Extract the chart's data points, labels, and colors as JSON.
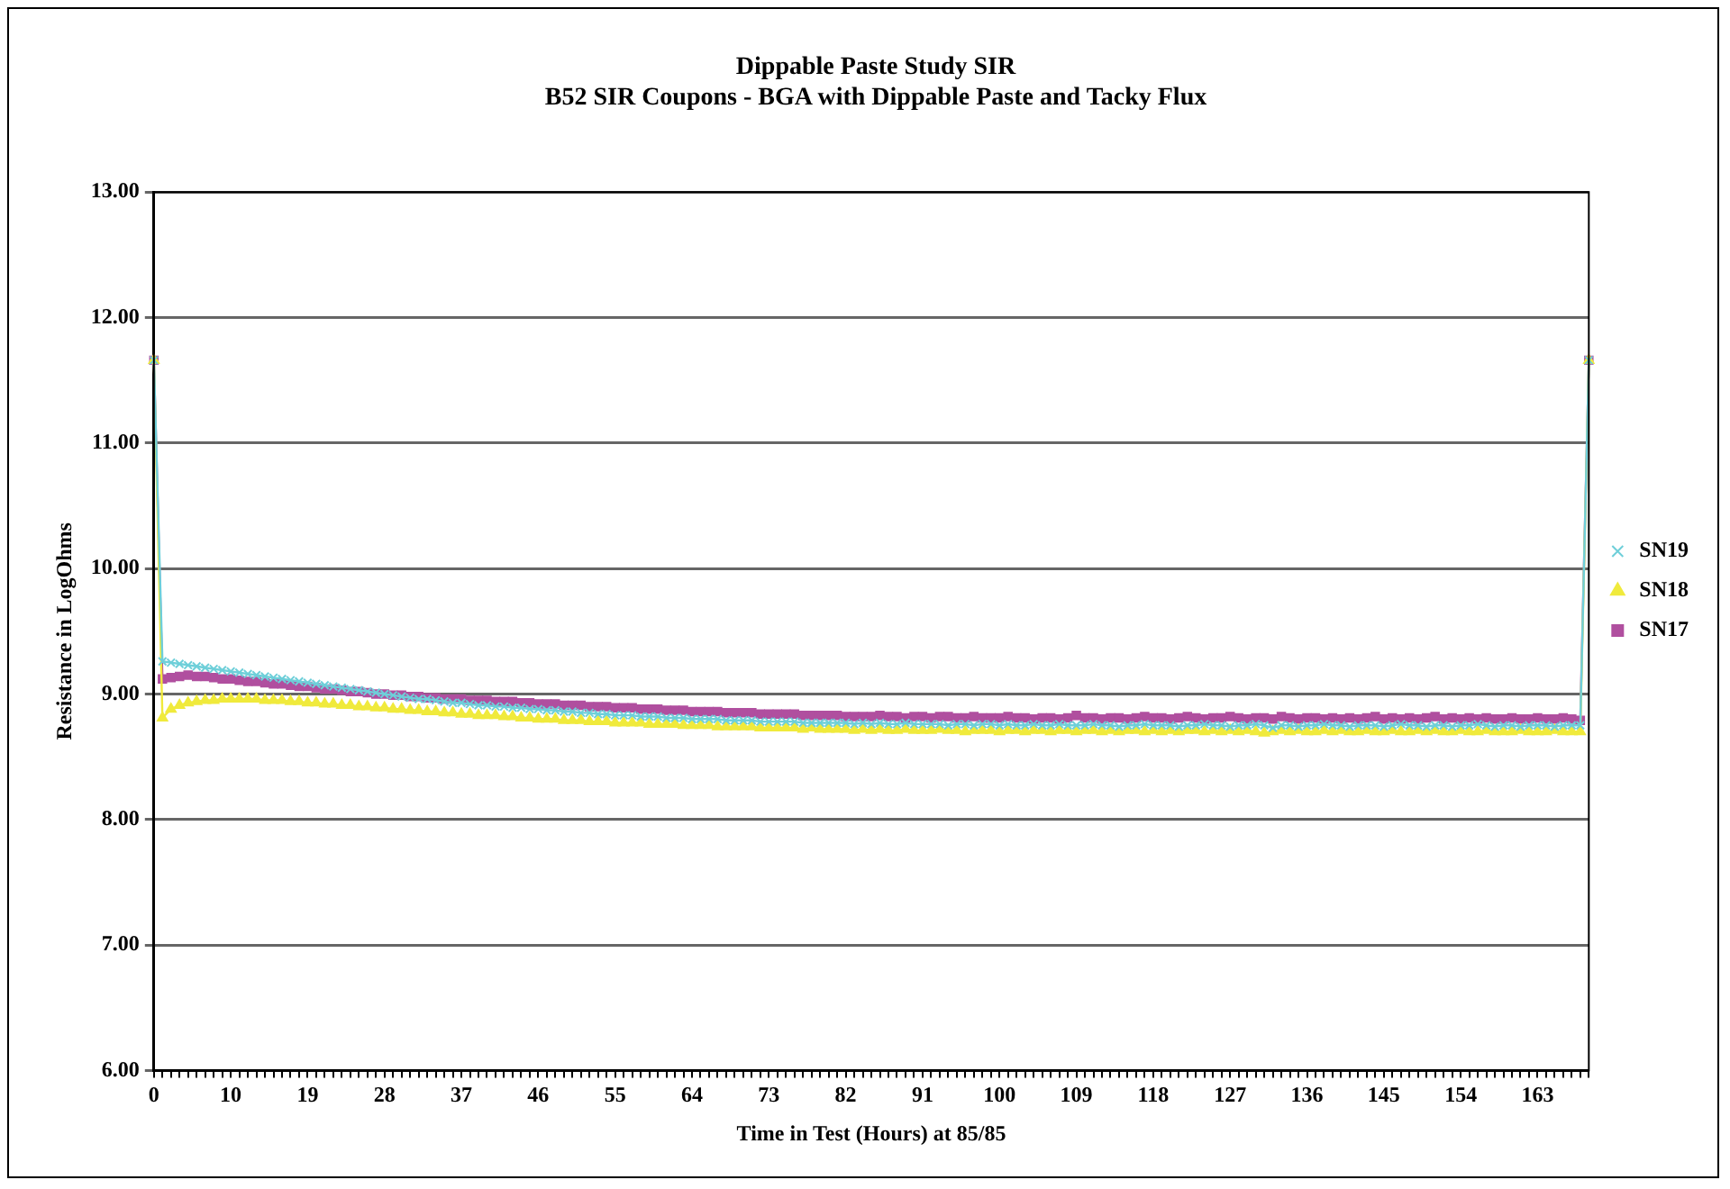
{
  "chart_data": {
    "type": "line",
    "title": "Dippable Paste Study SIR",
    "subtitle": "B52 SIR Coupons - BGA with Dippable Paste and Tacky Flux",
    "xlabel": "Time in Test (Hours) at 85/85",
    "ylabel": "Resistance in LogOhms",
    "categories": [
      "0",
      null,
      null,
      null,
      null,
      null,
      null,
      null,
      null,
      "10",
      null,
      null,
      null,
      null,
      null,
      null,
      null,
      null,
      "19",
      null,
      null,
      null,
      null,
      null,
      null,
      null,
      null,
      "28",
      null,
      null,
      null,
      null,
      null,
      null,
      null,
      null,
      "37",
      null,
      null,
      null,
      null,
      null,
      null,
      null,
      null,
      "46",
      null,
      null,
      null,
      null,
      null,
      null,
      null,
      null,
      "55",
      null,
      null,
      null,
      null,
      null,
      null,
      null,
      null,
      "64",
      null,
      null,
      null,
      null,
      null,
      null,
      null,
      null,
      "73",
      null,
      null,
      null,
      null,
      null,
      null,
      null,
      null,
      "82",
      null,
      null,
      null,
      null,
      null,
      null,
      null,
      null,
      "91",
      null,
      null,
      null,
      null,
      null,
      null,
      null,
      null,
      "100",
      null,
      null,
      null,
      null,
      null,
      null,
      null,
      null,
      "109",
      null,
      null,
      null,
      null,
      null,
      null,
      null,
      null,
      "118",
      null,
      null,
      null,
      null,
      null,
      null,
      null,
      null,
      "127",
      null,
      null,
      null,
      null,
      null,
      null,
      null,
      null,
      "136",
      null,
      null,
      null,
      null,
      null,
      null,
      null,
      null,
      "145",
      null,
      null,
      null,
      null,
      null,
      null,
      null,
      null,
      "154",
      null,
      null,
      null,
      null,
      null,
      null,
      null,
      null,
      "163",
      null,
      null,
      null,
      null,
      null,
      null
    ],
    "series": [
      {
        "name": "SN17",
        "color": "#b04f9f",
        "marker": "square",
        "values": [
          11.66,
          9.12,
          9.13,
          9.14,
          9.15,
          9.14,
          9.14,
          9.13,
          9.12,
          9.12,
          9.11,
          9.1,
          9.1,
          9.09,
          9.08,
          9.08,
          9.07,
          9.06,
          9.06,
          9.05,
          9.04,
          9.04,
          9.03,
          9.02,
          9.02,
          9.01,
          9.0,
          9.0,
          8.99,
          8.99,
          8.98,
          8.98,
          8.97,
          8.97,
          8.96,
          8.96,
          8.96,
          8.95,
          8.95,
          8.95,
          8.94,
          8.94,
          8.94,
          8.93,
          8.93,
          8.92,
          8.92,
          8.92,
          8.91,
          8.91,
          8.91,
          8.9,
          8.9,
          8.9,
          8.89,
          8.89,
          8.89,
          8.88,
          8.88,
          8.88,
          8.87,
          8.87,
          8.87,
          8.86,
          8.86,
          8.86,
          8.86,
          8.85,
          8.85,
          8.85,
          8.85,
          8.84,
          8.84,
          8.84,
          8.84,
          8.84,
          8.83,
          8.83,
          8.83,
          8.83,
          8.83,
          8.82,
          8.82,
          8.82,
          8.82,
          8.83,
          8.82,
          8.82,
          8.81,
          8.82,
          8.82,
          8.81,
          8.82,
          8.82,
          8.81,
          8.81,
          8.82,
          8.81,
          8.81,
          8.81,
          8.82,
          8.81,
          8.81,
          8.8,
          8.81,
          8.81,
          8.8,
          8.81,
          8.83,
          8.81,
          8.81,
          8.8,
          8.81,
          8.81,
          8.8,
          8.81,
          8.82,
          8.81,
          8.81,
          8.8,
          8.81,
          8.82,
          8.81,
          8.8,
          8.81,
          8.81,
          8.82,
          8.81,
          8.8,
          8.81,
          8.81,
          8.8,
          8.82,
          8.81,
          8.8,
          8.81,
          8.81,
          8.8,
          8.81,
          8.8,
          8.81,
          8.8,
          8.81,
          8.82,
          8.8,
          8.81,
          8.8,
          8.81,
          8.8,
          8.81,
          8.82,
          8.8,
          8.81,
          8.8,
          8.81,
          8.8,
          8.81,
          8.8,
          8.8,
          8.81,
          8.8,
          8.8,
          8.81,
          8.8,
          8.8,
          8.81,
          8.8,
          8.79,
          11.66
        ]
      },
      {
        "name": "SN18",
        "color": "#f0ea3c",
        "marker": "triangle",
        "values": [
          11.66,
          8.81,
          8.88,
          8.91,
          8.93,
          8.94,
          8.95,
          8.95,
          8.96,
          8.96,
          8.96,
          8.96,
          8.96,
          8.95,
          8.95,
          8.95,
          8.94,
          8.94,
          8.93,
          8.93,
          8.92,
          8.92,
          8.91,
          8.91,
          8.9,
          8.9,
          8.89,
          8.89,
          8.88,
          8.88,
          8.87,
          8.87,
          8.86,
          8.86,
          8.85,
          8.85,
          8.84,
          8.84,
          8.83,
          8.83,
          8.83,
          8.82,
          8.82,
          8.81,
          8.81,
          8.8,
          8.8,
          8.8,
          8.79,
          8.79,
          8.79,
          8.78,
          8.78,
          8.78,
          8.77,
          8.77,
          8.77,
          8.77,
          8.76,
          8.76,
          8.76,
          8.76,
          8.75,
          8.75,
          8.75,
          8.75,
          8.74,
          8.74,
          8.74,
          8.74,
          8.74,
          8.73,
          8.73,
          8.73,
          8.73,
          8.73,
          8.72,
          8.73,
          8.72,
          8.72,
          8.72,
          8.72,
          8.71,
          8.72,
          8.71,
          8.72,
          8.71,
          8.71,
          8.72,
          8.71,
          8.71,
          8.71,
          8.72,
          8.71,
          8.71,
          8.7,
          8.71,
          8.71,
          8.71,
          8.7,
          8.71,
          8.71,
          8.7,
          8.71,
          8.71,
          8.7,
          8.71,
          8.71,
          8.7,
          8.71,
          8.71,
          8.7,
          8.71,
          8.7,
          8.71,
          8.71,
          8.7,
          8.71,
          8.7,
          8.71,
          8.7,
          8.71,
          8.71,
          8.7,
          8.71,
          8.7,
          8.71,
          8.7,
          8.71,
          8.7,
          8.69,
          8.7,
          8.71,
          8.7,
          8.71,
          8.7,
          8.7,
          8.71,
          8.7,
          8.71,
          8.7,
          8.7,
          8.71,
          8.7,
          8.7,
          8.71,
          8.7,
          8.7,
          8.71,
          8.7,
          8.71,
          8.7,
          8.7,
          8.71,
          8.7,
          8.7,
          8.71,
          8.7,
          8.7,
          8.7,
          8.71,
          8.7,
          8.7,
          8.7,
          8.71,
          8.7,
          8.7,
          8.7,
          11.66
        ]
      },
      {
        "name": "SN19",
        "color": "#6ecfd9",
        "marker": "cross",
        "values": [
          11.66,
          9.26,
          9.25,
          9.24,
          9.23,
          9.22,
          9.21,
          9.2,
          9.19,
          9.18,
          9.17,
          9.16,
          9.15,
          9.14,
          9.13,
          9.12,
          9.11,
          9.1,
          9.09,
          9.08,
          9.07,
          9.06,
          9.05,
          9.04,
          9.03,
          9.02,
          9.01,
          9.0,
          8.99,
          8.98,
          8.97,
          8.96,
          8.96,
          8.95,
          8.94,
          8.93,
          8.93,
          8.92,
          8.91,
          8.91,
          8.9,
          8.9,
          8.89,
          8.89,
          8.88,
          8.88,
          8.87,
          8.87,
          8.86,
          8.86,
          8.85,
          8.85,
          8.84,
          8.84,
          8.83,
          8.83,
          8.83,
          8.82,
          8.82,
          8.82,
          8.81,
          8.81,
          8.81,
          8.8,
          8.8,
          8.8,
          8.8,
          8.79,
          8.79,
          8.79,
          8.79,
          8.78,
          8.78,
          8.78,
          8.78,
          8.78,
          8.77,
          8.77,
          8.77,
          8.77,
          8.77,
          8.77,
          8.76,
          8.77,
          8.76,
          8.77,
          8.76,
          8.76,
          8.77,
          8.76,
          8.76,
          8.76,
          8.76,
          8.75,
          8.76,
          8.76,
          8.75,
          8.76,
          8.76,
          8.75,
          8.76,
          8.75,
          8.75,
          8.76,
          8.75,
          8.75,
          8.76,
          8.75,
          8.75,
          8.75,
          8.76,
          8.75,
          8.75,
          8.74,
          8.75,
          8.75,
          8.76,
          8.75,
          8.75,
          8.75,
          8.74,
          8.75,
          8.75,
          8.76,
          8.75,
          8.75,
          8.74,
          8.75,
          8.75,
          8.76,
          8.75,
          8.73,
          8.75,
          8.75,
          8.74,
          8.75,
          8.75,
          8.76,
          8.75,
          8.75,
          8.74,
          8.75,
          8.75,
          8.75,
          8.74,
          8.75,
          8.76,
          8.75,
          8.75,
          8.74,
          8.75,
          8.75,
          8.74,
          8.75,
          8.75,
          8.76,
          8.75,
          8.74,
          8.75,
          8.75,
          8.74,
          8.75,
          8.75,
          8.75,
          8.74,
          8.75,
          8.75,
          8.75,
          11.66
        ]
      }
    ],
    "ylim": [
      6,
      13
    ],
    "yticks": [
      {
        "value": 6,
        "label": "6.00"
      },
      {
        "value": 7,
        "label": "7.00"
      },
      {
        "value": 8,
        "label": "8.00"
      },
      {
        "value": 9,
        "label": "9.00"
      },
      {
        "value": 10,
        "label": "10.00"
      },
      {
        "value": 11,
        "label": "11.00"
      },
      {
        "value": 12,
        "label": "12.00"
      },
      {
        "value": 13,
        "label": "13.00"
      }
    ],
    "grid": "y",
    "legend": "right",
    "line_style": "solid"
  }
}
